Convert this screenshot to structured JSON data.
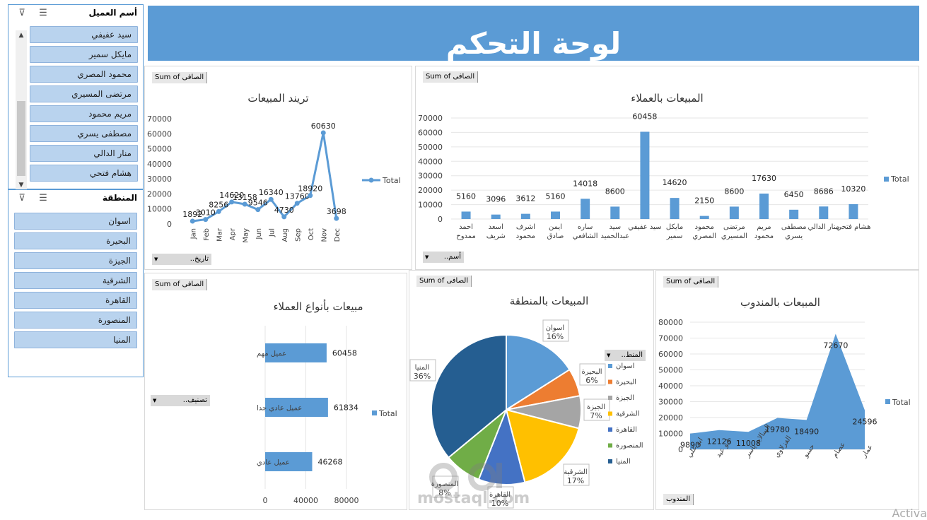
{
  "slicer_customer": {
    "title": "أسم العميل",
    "items": [
      "سيد عفيفي",
      "مايكل سمير",
      "محمود المصري",
      "مرتضى المسيري",
      "مريم محمود",
      "مصطفى يسري",
      "منار الدالي",
      "هشام فتحي"
    ]
  },
  "slicer_region": {
    "title": "المنطقة",
    "items": [
      "اسوان",
      "البحيرة",
      "الجيزة",
      "الشرقية",
      "القاهرة",
      "المنصورة",
      "المنيا"
    ]
  },
  "banner": {
    "title": "لوحة التحكم"
  },
  "trend_panel": {
    "field_pill": "Sum of الصافى",
    "filter_pill": "تاريخ..",
    "legend": "Total",
    "chart_data": {
      "type": "line",
      "title": "تريند المبيعات",
      "categories": [
        "Jan",
        "Feb",
        "Mar",
        "Apr",
        "May",
        "Jun",
        "Jul",
        "Aug",
        "Sep",
        "Oct",
        "Nov",
        "Dec"
      ],
      "values": [
        1892,
        3010,
        8256,
        14620,
        13158,
        9546,
        16340,
        4730,
        13760,
        18920,
        60630,
        3698
      ],
      "ylim": [
        0,
        70000
      ],
      "yticks": [
        "70000",
        "60000",
        "50000",
        "40000",
        "30000",
        "20000",
        "10000",
        "0"
      ],
      "color": "#5b9bd5"
    }
  },
  "customers_panel": {
    "field_pill": "Sum of الصافى",
    "filter_pill": "أسم..",
    "legend": "Total",
    "chart_data": {
      "type": "bar",
      "title": "المبيعات بالعملاء",
      "categories": [
        [
          "احمد",
          "ممدوح"
        ],
        [
          "اسعد",
          "شريف"
        ],
        [
          "اشرف",
          "محمود"
        ],
        [
          "ايمن",
          "صادق"
        ],
        [
          "ساره",
          "الشافعي"
        ],
        [
          "سيد",
          "عبدالحميد"
        ],
        [
          "سيد عفيفي"
        ],
        [
          "مايكل",
          "سمير"
        ],
        [
          "محمود",
          "المصري"
        ],
        [
          "مرتضى",
          "المسيري"
        ],
        [
          "مريم",
          "محمود"
        ],
        [
          "مصطفى",
          "يسري"
        ],
        [
          "منار الدالي"
        ],
        [
          "هشام فتحي"
        ]
      ],
      "values": [
        5160,
        3096,
        3612,
        5160,
        14018,
        8600,
        60458,
        14620,
        2150,
        8600,
        17630,
        6450,
        8686,
        10320
      ],
      "ylim": [
        0,
        70000
      ],
      "yticks": [
        "70000",
        "60000",
        "50000",
        "40000",
        "30000",
        "20000",
        "10000",
        "0"
      ],
      "color": "#5b9bd5"
    }
  },
  "types_panel": {
    "field_pill": "Sum of الصافى",
    "filter_pill": "تصنيف..",
    "legend": "Total",
    "chart_data": {
      "type": "bar",
      "orientation": "horizontal",
      "title": "مبيعات بأنواع العملاء",
      "categories": [
        "عميل مهم",
        "عميل عادي جدا",
        "عميل عادي"
      ],
      "values": [
        60458,
        61834,
        46268
      ],
      "xlim": [
        0,
        80000
      ],
      "xticks": [
        "0",
        "40000",
        "80000"
      ],
      "color": "#5b9bd5"
    }
  },
  "region_panel": {
    "field_pill": "Sum of الصافى",
    "legend_title": "المنط..",
    "chart_data": {
      "type": "pie",
      "title": "المبيعات بالمنطقة",
      "slices": [
        {
          "label": "اسوان",
          "percent": "16%",
          "value": 16,
          "color": "#5b9bd5"
        },
        {
          "label": "البحيرة",
          "percent": "6%",
          "value": 6,
          "color": "#ed7d31"
        },
        {
          "label": "الجيزة",
          "percent": "7%",
          "value": 7,
          "color": "#a5a5a5"
        },
        {
          "label": "الشرقية",
          "percent": "17%",
          "value": 17,
          "color": "#ffc000"
        },
        {
          "label": "القاهرة",
          "percent": "10%",
          "value": 10,
          "color": "#4472c4"
        },
        {
          "label": "المنصورة",
          "percent": "8%",
          "value": 8,
          "color": "#70ad47"
        },
        {
          "label": "المنيا",
          "percent": "36%",
          "value": 36,
          "color": "#255e91"
        }
      ]
    }
  },
  "reps_panel": {
    "field_pill": "Sum of الصافى",
    "filter_pill": "المندوب",
    "legend": "Total",
    "chart_data": {
      "type": "area",
      "title": "المبيعات بالمندوب",
      "categories": [
        "ابو علي",
        "ابو عيد",
        "السالايد ياسر",
        "الغزلاوي",
        "حسو",
        "عصام",
        "عمار"
      ],
      "values": [
        9890,
        12126,
        11008,
        19780,
        18490,
        72670,
        24596
      ],
      "ylim": [
        0,
        80000
      ],
      "yticks": [
        "80000",
        "70000",
        "60000",
        "50000",
        "40000",
        "30000",
        "20000",
        "10000",
        "0"
      ],
      "color": "#5b9bd5"
    }
  },
  "watermark": {
    "text": "mostaql.com"
  },
  "os_notice": {
    "text": "Activa"
  }
}
